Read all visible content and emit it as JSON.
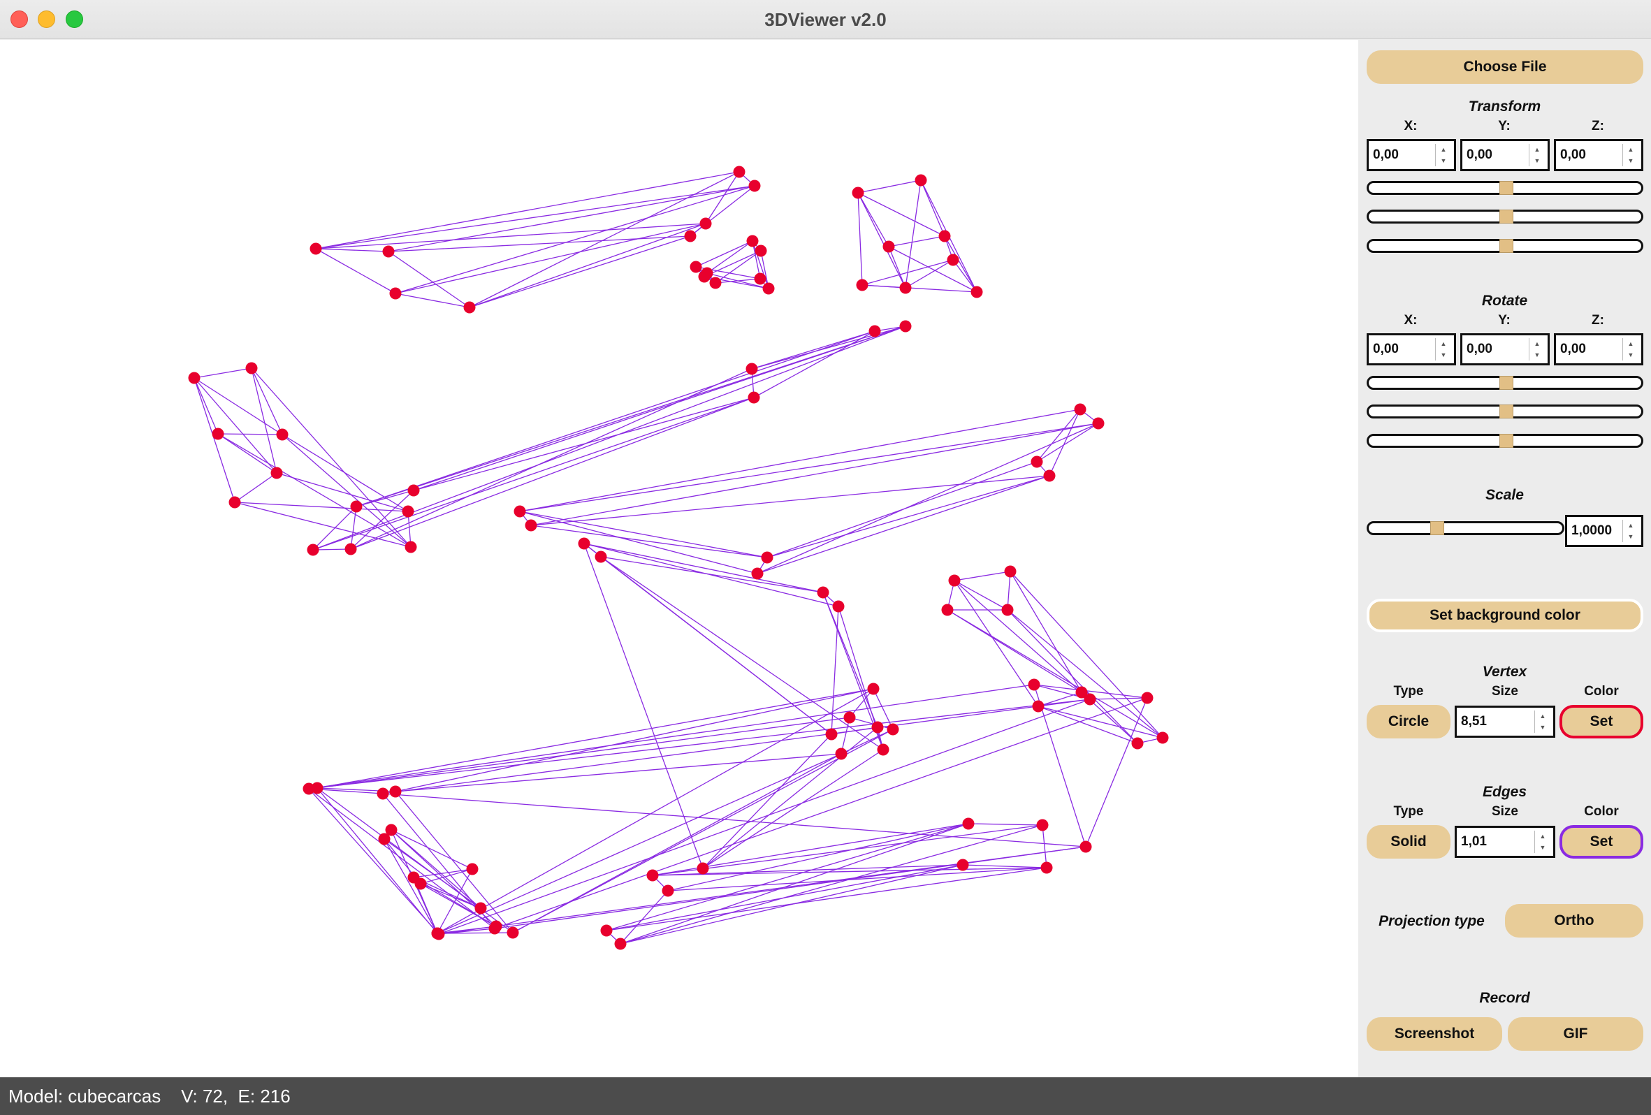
{
  "window": {
    "title": "3DViewer v2.0"
  },
  "file": {
    "choose_label": "Choose File"
  },
  "transform": {
    "title": "Transform",
    "x_label": "X:",
    "y_label": "Y:",
    "z_label": "Z:",
    "x_value": "0,00",
    "y_value": "0,00",
    "z_value": "0,00"
  },
  "rotate": {
    "title": "Rotate",
    "x_label": "X:",
    "y_label": "Y:",
    "z_label": "Z:",
    "x_value": "0,00",
    "y_value": "0,00",
    "z_value": "0,00"
  },
  "scale": {
    "title": "Scale",
    "value": "1,0000"
  },
  "background": {
    "label": "Set background color"
  },
  "vertex": {
    "title": "Vertex",
    "type_label": "Type",
    "size_label": "Size",
    "color_label": "Color",
    "type_value": "Circle",
    "size_value": "8,51",
    "set_label": "Set",
    "color": "#e8002d"
  },
  "edges": {
    "title": "Edges",
    "type_label": "Type",
    "size_label": "Size",
    "color_label": "Color",
    "type_value": "Solid",
    "size_value": "1,01",
    "set_label": "Set",
    "color": "#8a2be2"
  },
  "projection": {
    "label": "Projection type",
    "value": "Ortho"
  },
  "record": {
    "title": "Record",
    "screenshot_label": "Screenshot",
    "gif_label": "GIF"
  },
  "status": {
    "text": "Model: cubecarcas    V: 72,  E: 216"
  }
}
